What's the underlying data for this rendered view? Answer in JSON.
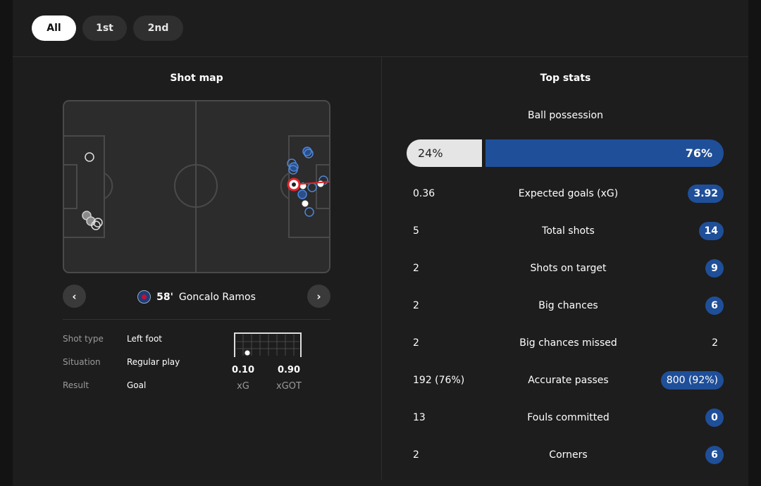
{
  "tabs": [
    {
      "label": "All",
      "active": true
    },
    {
      "label": "1st",
      "active": false
    },
    {
      "label": "2nd",
      "active": false
    }
  ],
  "shot_map": {
    "title": "Shot map",
    "player": {
      "minute": "58'",
      "name": "Goncalo Ramos"
    },
    "prev_icon": "chevron-left-icon",
    "next_icon": "chevron-right-icon",
    "details": [
      {
        "label": "Shot type",
        "value": "Left foot"
      },
      {
        "label": "Situation",
        "value": "Regular play"
      },
      {
        "label": "Result",
        "value": "Goal"
      }
    ],
    "xg": {
      "value": "0.10",
      "label": "xG"
    },
    "xgot": {
      "value": "0.90",
      "label": "xGOT"
    }
  },
  "top_stats": {
    "title": "Top stats",
    "possession": {
      "label": "Ball possession",
      "home": "24%",
      "away": "76%",
      "home_share": 0.24
    },
    "rows": [
      {
        "home": "0.36",
        "label": "Expected goals (xG)",
        "away": "3.92",
        "away_highlight": true
      },
      {
        "home": "5",
        "label": "Total shots",
        "away": "14",
        "away_highlight": true
      },
      {
        "home": "2",
        "label": "Shots on target",
        "away": "9",
        "away_highlight": true
      },
      {
        "home": "2",
        "label": "Big chances",
        "away": "6",
        "away_highlight": true
      },
      {
        "home": "2",
        "label": "Big chances missed",
        "away": "2",
        "away_highlight": false
      },
      {
        "home": "192 (76%)",
        "label": "Accurate passes",
        "away": "800 (92%)",
        "away_highlight": true
      },
      {
        "home": "13",
        "label": "Fouls committed",
        "away": "0",
        "away_highlight": true
      },
      {
        "home": "2",
        "label": "Corners",
        "away": "6",
        "away_highlight": true
      }
    ]
  },
  "colors": {
    "accent": "#1f4f99",
    "panel": "#1d1d1d",
    "home_bar": "#e5e5e5",
    "goal_marker": "#e0242b"
  }
}
